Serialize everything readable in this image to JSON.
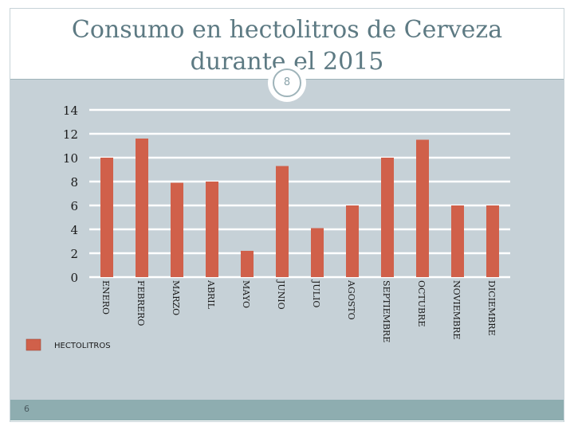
{
  "slide": {
    "badge_number": "8",
    "page_number": "6"
  },
  "chart_data": {
    "type": "bar",
    "title_lines": [
      "Consumo en hectolitros de Cerveza",
      "durante el 2015"
    ],
    "categories": [
      "ENERO",
      "FEBRERO",
      "MARZO",
      "ABRIL",
      "MAYO",
      "JUNIO",
      "JULIO",
      "AGOSTO",
      "SEPTIEMBRE",
      "OCTUBRE",
      "NOVIEMBRE",
      "DICIEMBRE"
    ],
    "series": [
      {
        "name": "HECTOLITROS",
        "values": [
          10,
          11.6,
          7.9,
          8,
          2.2,
          9.3,
          4.1,
          6,
          10,
          11.5,
          6,
          6
        ],
        "color": "#d0604a"
      }
    ],
    "yticks": [
      "0",
      "2",
      "4",
      "6",
      "8",
      "10",
      "12",
      "14"
    ],
    "ylim": [
      0,
      14
    ],
    "grid": true,
    "legend_position": "bottom-left",
    "colors": {
      "gridline": "#ffffff",
      "tick_text": "#1a1a1a"
    }
  }
}
